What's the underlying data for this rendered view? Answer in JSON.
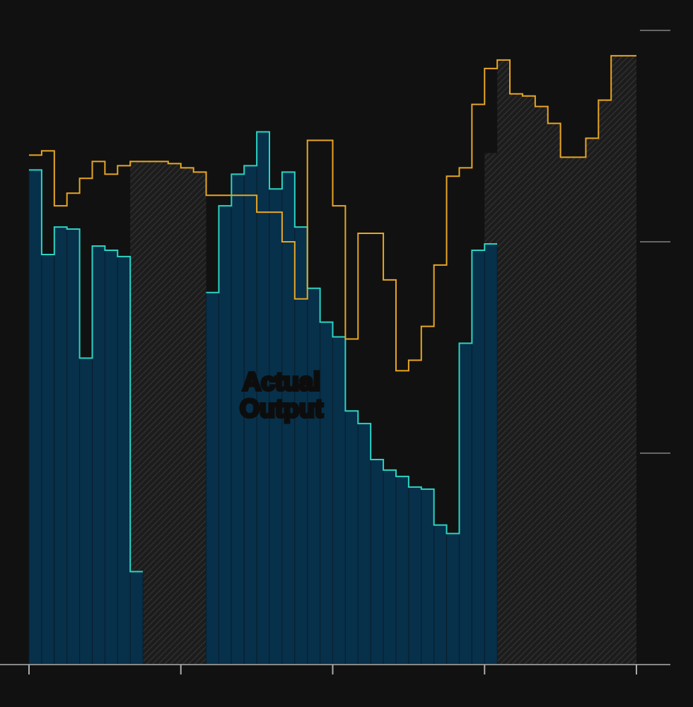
{
  "chart_data": {
    "type": "step",
    "annotation": "Actual Output",
    "xlim": [
      0,
      48
    ],
    "xticks": [
      0,
      12,
      24,
      36,
      48
    ],
    "ylim": [
      0,
      3
    ],
    "yticks": [
      1,
      2,
      3
    ],
    "series": [
      {
        "kind": "hatched",
        "color": "#2b2b2b",
        "values": [
          null,
          null,
          null,
          null,
          null,
          null,
          null,
          null,
          2.38,
          2.38,
          2.38,
          2.37,
          2.35,
          2.33,
          null,
          null,
          null,
          null,
          null,
          null,
          null,
          null,
          null,
          null,
          null,
          null,
          null,
          null,
          null,
          null,
          null,
          null,
          null,
          null,
          null,
          null,
          2.42,
          2.86,
          2.7,
          2.69,
          2.64,
          2.56,
          2.4,
          2.4,
          2.49,
          2.67,
          2.88,
          2.88
        ]
      },
      {
        "kind": "bars",
        "color": "#2ad4c4",
        "values": [
          2.34,
          1.94,
          2.07,
          2.06,
          1.45,
          1.98,
          1.96,
          1.93,
          0.44,
          null,
          null,
          null,
          null,
          null,
          1.76,
          2.17,
          2.32,
          2.36,
          2.52,
          2.25,
          2.33,
          2.07,
          1.78,
          1.62,
          1.55,
          1.2,
          1.14,
          0.97,
          0.92,
          0.89,
          0.84,
          0.83,
          0.66,
          0.62,
          1.52,
          1.96,
          1.99,
          null,
          null,
          null,
          null,
          null,
          null,
          null,
          null,
          null,
          null,
          null
        ]
      },
      {
        "kind": "line",
        "color": "#e8a623",
        "values": [
          2.41,
          2.43,
          2.17,
          2.23,
          2.3,
          2.38,
          2.32,
          2.36,
          2.38,
          2.38,
          2.38,
          2.37,
          2.35,
          2.33,
          2.22,
          2.22,
          2.22,
          2.22,
          2.14,
          2.14,
          2.0,
          1.73,
          2.48,
          2.48,
          2.17,
          1.54,
          2.04,
          2.04,
          1.82,
          1.39,
          1.44,
          1.6,
          1.89,
          2.31,
          2.35,
          2.65,
          2.82,
          2.86,
          2.7,
          2.69,
          2.64,
          2.56,
          2.4,
          2.4,
          2.49,
          2.67,
          2.88,
          2.88
        ]
      }
    ]
  }
}
